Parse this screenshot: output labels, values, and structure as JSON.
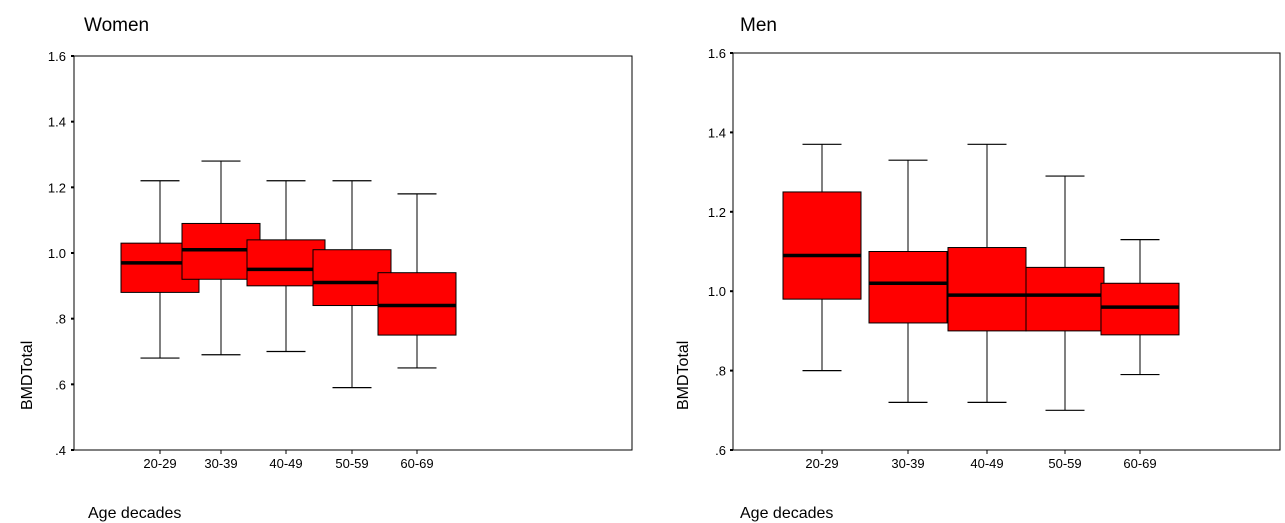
{
  "chart_data": [
    {
      "type": "boxplot",
      "title": "Women",
      "xlabel": "Age decades",
      "ylabel": "BMDTotal",
      "ylim": [
        0.4,
        1.6
      ],
      "yticks": [
        ".4",
        ".6",
        ".8",
        "1.0",
        "1.2",
        "1.4",
        "1.6"
      ],
      "yticks_values": [
        0.4,
        0.6,
        0.8,
        1.0,
        1.2,
        1.4,
        1.6
      ],
      "categories": [
        "20-29",
        "30-39",
        "40-49",
        "50-59",
        "60-69"
      ],
      "box_color": "#ff0000",
      "boxes": [
        {
          "min": 0.68,
          "q1": 0.88,
          "median": 0.97,
          "q3": 1.03,
          "max": 1.22
        },
        {
          "min": 0.69,
          "q1": 0.92,
          "median": 1.01,
          "q3": 1.09,
          "max": 1.28
        },
        {
          "min": 0.7,
          "q1": 0.9,
          "median": 0.95,
          "q3": 1.04,
          "max": 1.22
        },
        {
          "min": 0.59,
          "q1": 0.84,
          "median": 0.91,
          "q3": 1.01,
          "max": 1.22
        },
        {
          "min": 0.65,
          "q1": 0.75,
          "median": 0.84,
          "q3": 0.94,
          "max": 1.18
        }
      ]
    },
    {
      "type": "boxplot",
      "title": "Men",
      "xlabel": "Age decades",
      "ylabel": "BMDTotal",
      "ylim": [
        0.6,
        1.6
      ],
      "yticks": [
        ".6",
        ".8",
        "1.0",
        "1.2",
        "1.4",
        "1.6"
      ],
      "yticks_values": [
        0.6,
        0.8,
        1.0,
        1.2,
        1.4,
        1.6
      ],
      "categories": [
        "20-29",
        "30-39",
        "40-49",
        "50-59",
        "60-69"
      ],
      "box_color": "#ff0000",
      "boxes": [
        {
          "min": 0.8,
          "q1": 0.98,
          "median": 1.09,
          "q3": 1.25,
          "max": 1.37
        },
        {
          "min": 0.72,
          "q1": 0.92,
          "median": 1.02,
          "q3": 1.1,
          "max": 1.33
        },
        {
          "min": 0.72,
          "q1": 0.9,
          "median": 0.99,
          "q3": 1.11,
          "max": 1.37
        },
        {
          "min": 0.7,
          "q1": 0.9,
          "median": 0.99,
          "q3": 1.06,
          "max": 1.29
        },
        {
          "min": 0.79,
          "q1": 0.89,
          "median": 0.96,
          "q3": 1.02,
          "max": 1.13
        }
      ]
    }
  ]
}
